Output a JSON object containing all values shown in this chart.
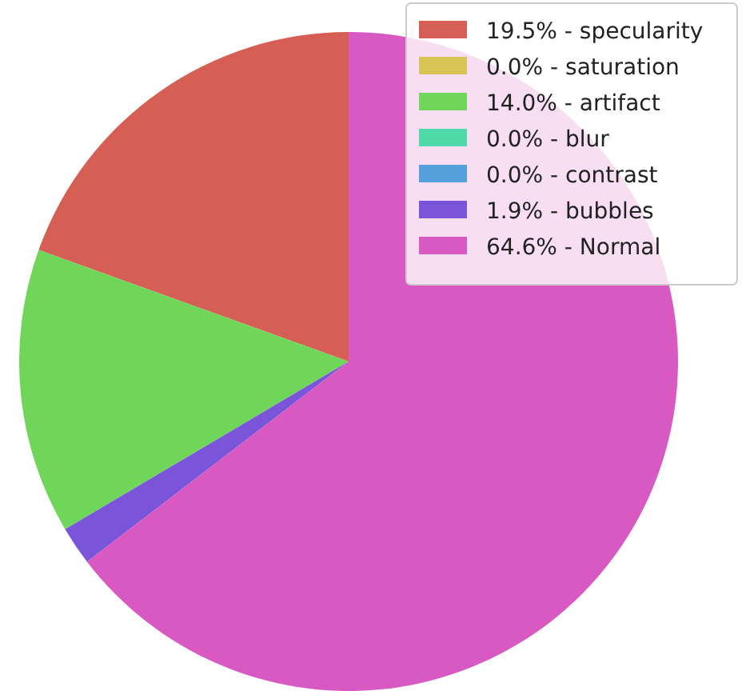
{
  "chart_data": {
    "type": "pie",
    "categories": [
      "19.5% - specularity",
      "0.0% - saturation",
      "14.0% - artifact",
      "0.0% - blur",
      "0.0% - contrast",
      "1.9% - bubbles",
      "64.6% - Normal"
    ],
    "values": [
      19.5,
      0.0,
      14.0,
      0.0,
      0.0,
      1.9,
      64.6
    ],
    "colors": [
      "#d65f55",
      "#d8c454",
      "#6fd65a",
      "#4fd8a8",
      "#56a0dc",
      "#7b55d9",
      "#d759c1"
    ],
    "legend": "top right"
  }
}
